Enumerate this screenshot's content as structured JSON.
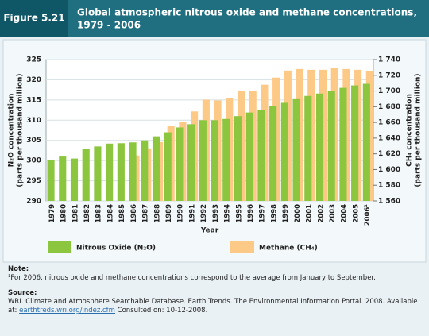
{
  "figure_label": "Figure 5.21",
  "title": [
    "Global atmospheric nitrous oxide and methane concentrations,",
    "1979 - 2006"
  ],
  "chart_data": {
    "type": "bar",
    "categories": [
      "1979",
      "1980",
      "1981",
      "1982",
      "1983",
      "1984",
      "1985",
      "1986",
      "1987",
      "1988",
      "1989",
      "1990",
      "1991",
      "1992",
      "1993",
      "1994",
      "1995",
      "1996",
      "1997",
      "1998",
      "1999",
      "2000",
      "2001",
      "2002",
      "2003",
      "2004",
      "2005",
      "2006¹"
    ],
    "x_label": "Year",
    "y_label": [
      "N₂O concentration",
      "(parts per thousand million)"
    ],
    "y2_label": [
      "CH₄ concentration",
      "(parts per thousand million)"
    ],
    "series": [
      {
        "name": "Nitrous Oxide (N₂O)",
        "color": "#8cc63f",
        "values": [
          300.2,
          301,
          300.5,
          302.8,
          303.5,
          304.2,
          304.3,
          304.5,
          305,
          306,
          307,
          308.2,
          309,
          310,
          310,
          310.3,
          311,
          311.9,
          312.5,
          313.5,
          314.3,
          315.2,
          316,
          316.6,
          317.3,
          318,
          318.6,
          319
        ]
      },
      {
        "name": "Methane (CH₄)",
        "color": "#fdc986",
        "axis": "y2",
        "values": [
          null,
          null,
          null,
          null,
          null,
          null,
          null,
          1618,
          1627,
          1635,
          1656,
          1661,
          1674,
          1689,
          1688,
          1691,
          1700,
          1700,
          1708,
          1717,
          1726,
          1728,
          1727,
          1727,
          1729,
          1728,
          1727,
          1725
        ]
      }
    ],
    "ylim": [
      290,
      325
    ],
    "yticks": [
      290,
      295,
      300,
      305,
      310,
      315,
      320,
      325
    ],
    "y2lim": [
      1560,
      1740
    ],
    "y2ticks": [
      {
        "value": 1560,
        "label": "1 560"
      },
      {
        "value": 1580,
        "label": "1 580"
      },
      {
        "value": 1600,
        "label": "1 600"
      },
      {
        "value": 1620,
        "label": "1 620"
      },
      {
        "value": 1640,
        "label": "1 640"
      },
      {
        "value": 1660,
        "label": "1 660"
      },
      {
        "value": 1680,
        "label": "1 680"
      },
      {
        "value": 1700,
        "label": "1 700"
      },
      {
        "value": 1720,
        "label": "1 720"
      },
      {
        "value": 1740,
        "label": "1 740"
      }
    ]
  },
  "note_heading": "Note:",
  "note": "¹For 2006, nitrous oxide and methane concentrations correspond to the average from January to September.",
  "source_heading": "Source:",
  "source": "WRI. Climate and Atmosphere Searchable Database. Earth Trends. The Environmental Information Portal. 2008. Available at:",
  "source_link": "earthtreds.wri.org/indez.cfm",
  "consulted": "Consulted on: 10-12-2008."
}
